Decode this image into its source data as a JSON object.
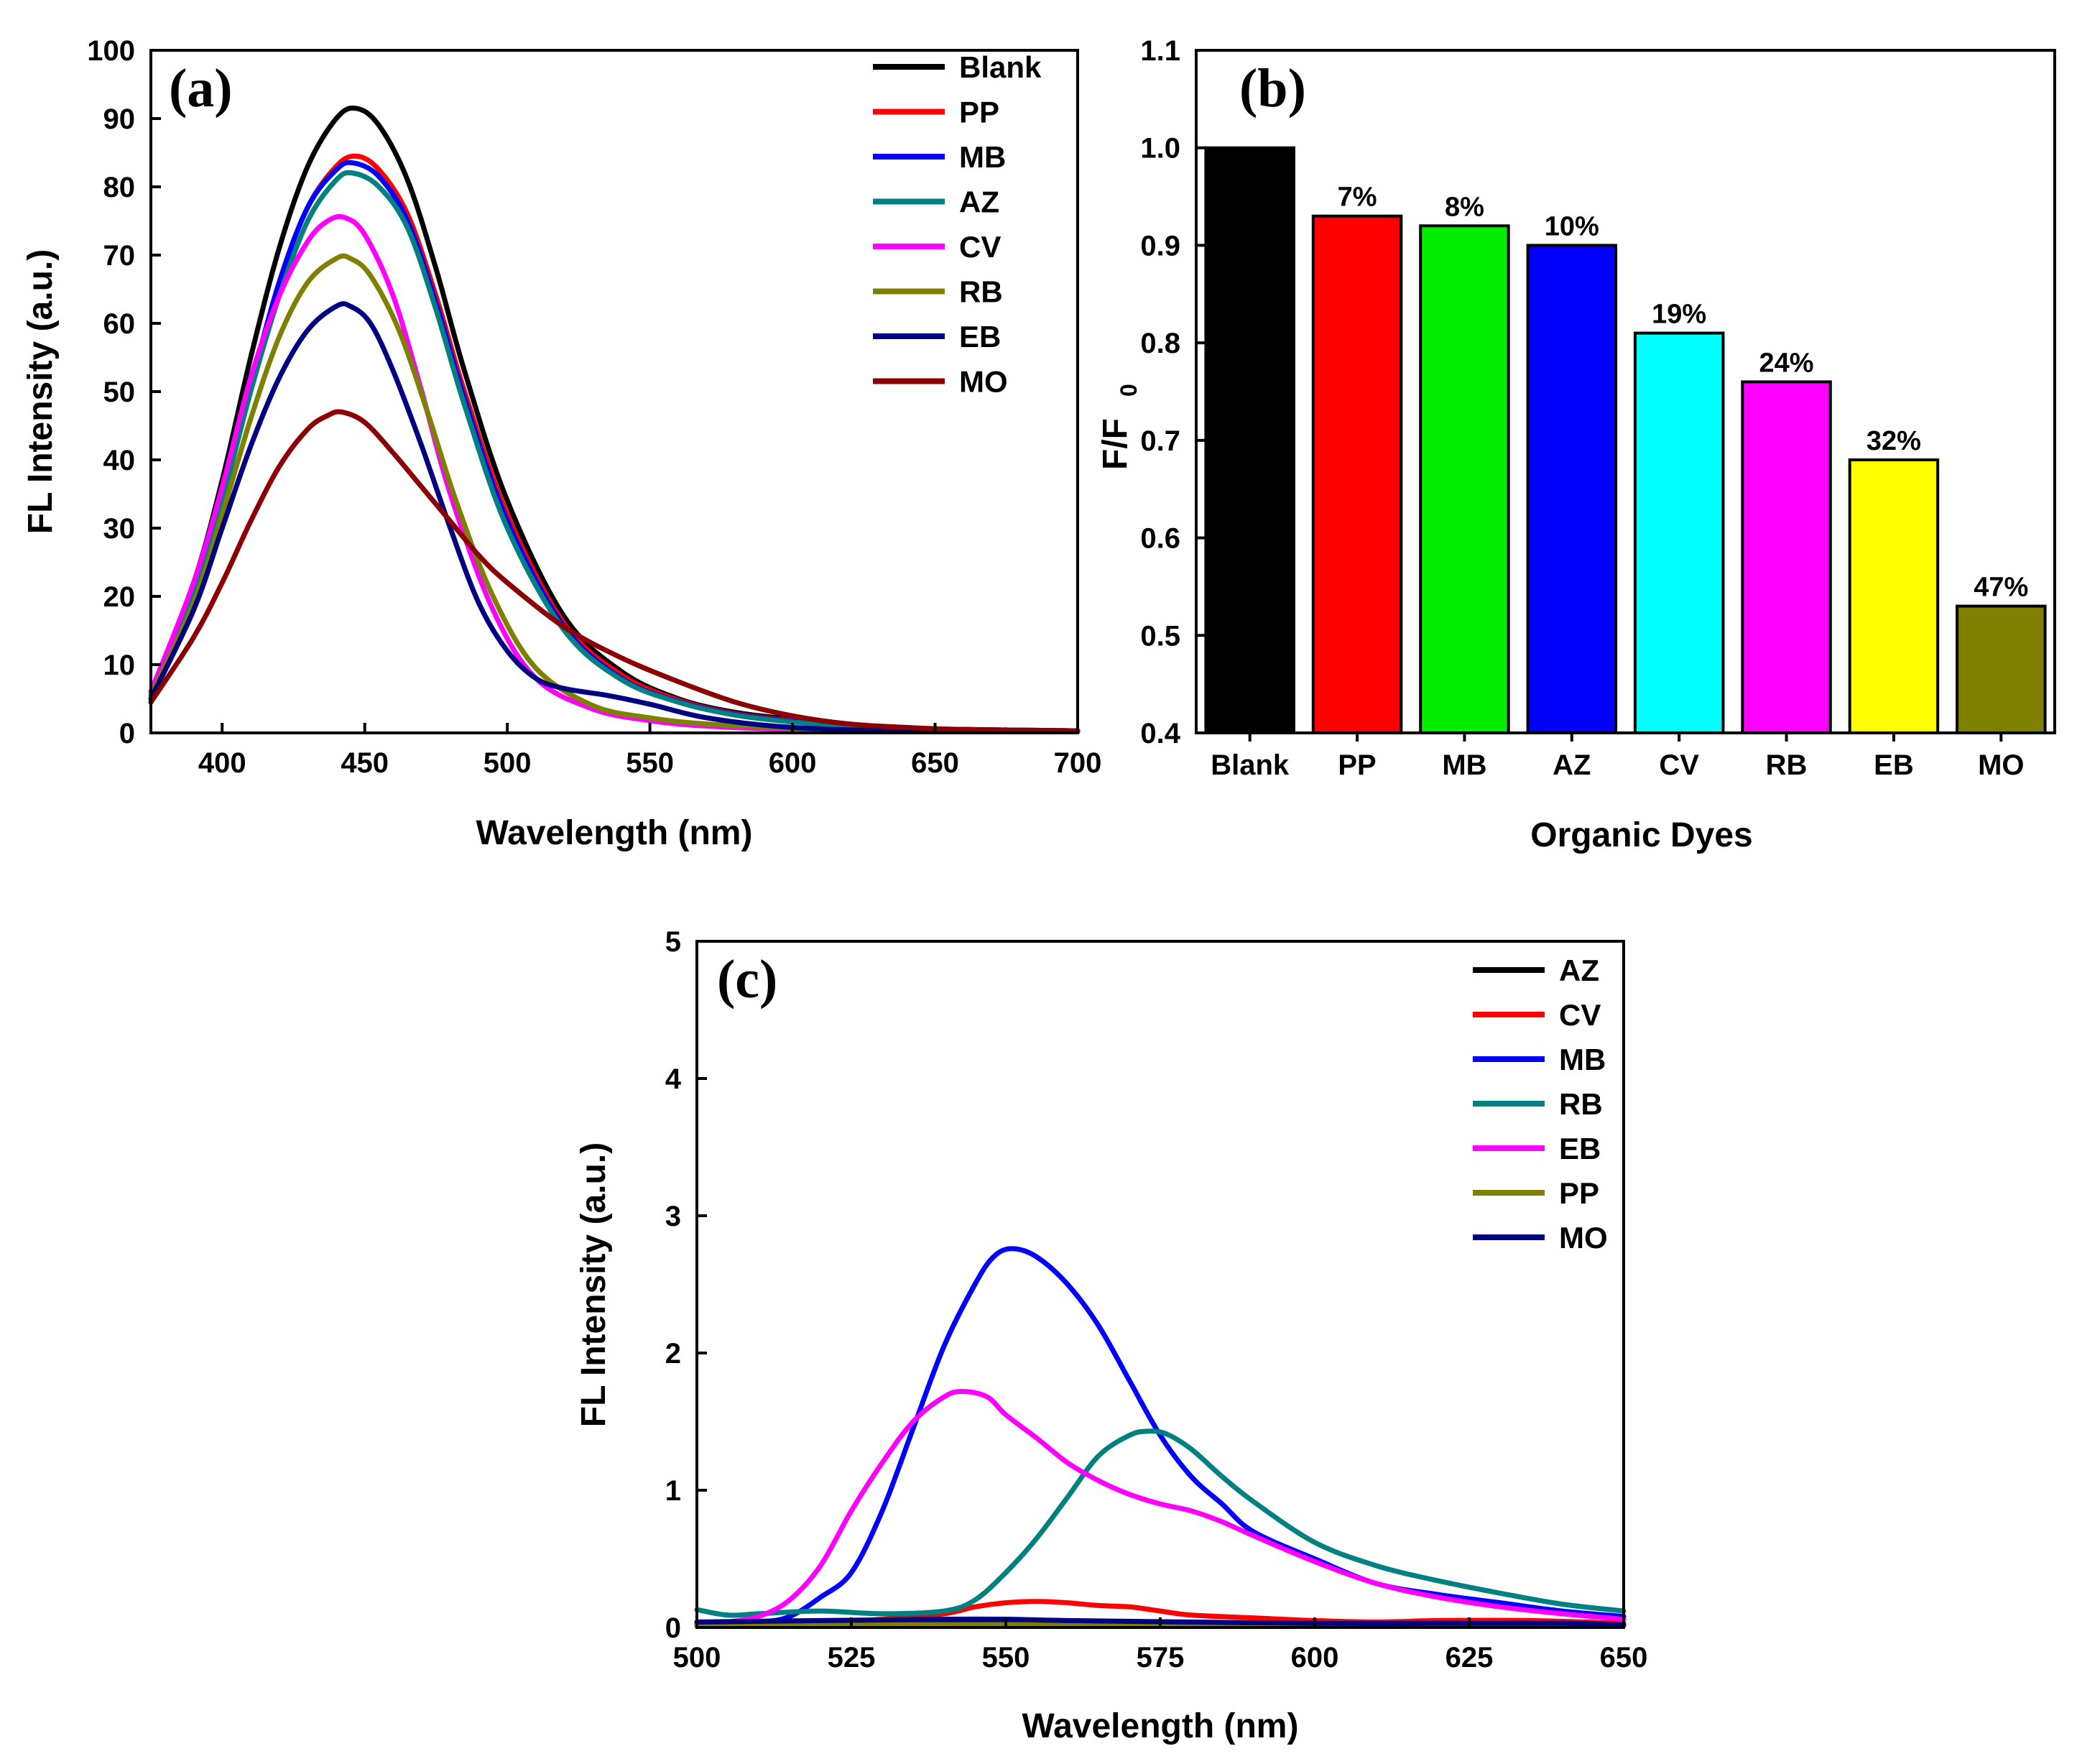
{
  "chart_data": [
    {
      "id": "a",
      "type": "line",
      "panel_label": "(a)",
      "xlabel": "Wavelength (nm)",
      "ylabel": "FL Intensity (a.u.)",
      "xlim": [
        375,
        700
      ],
      "ylim": [
        0,
        100
      ],
      "xticks": [
        400,
        450,
        500,
        550,
        600,
        650,
        700
      ],
      "yticks": [
        0,
        10,
        20,
        30,
        40,
        50,
        60,
        70,
        80,
        90,
        100
      ],
      "legend_position": "top-right",
      "series": [
        {
          "name": "Blank",
          "color": "#000000",
          "x": [
            375,
            390,
            400,
            410,
            420,
            430,
            440,
            447,
            455,
            465,
            475,
            485,
            500,
            520,
            540,
            560,
            580,
            600,
            620,
            640,
            660,
            680,
            700
          ],
          "y": [
            6,
            22,
            37,
            55,
            71,
            83,
            90,
            91.5,
            89,
            81,
            68,
            53,
            34,
            17,
            9,
            5,
            3,
            2,
            1.2,
            0.7,
            0.5,
            0.4,
            0.3
          ]
        },
        {
          "name": "PP",
          "color": "#ff0000",
          "x": [
            375,
            390,
            400,
            410,
            420,
            430,
            440,
            447,
            455,
            465,
            475,
            485,
            500,
            520,
            540,
            560,
            580,
            600,
            620,
            640,
            660,
            680,
            700
          ],
          "y": [
            6,
            21,
            35,
            51,
            66,
            77,
            83,
            84.5,
            82.5,
            76,
            64,
            50,
            32,
            16,
            8.5,
            4.8,
            2.8,
            1.8,
            1.1,
            0.7,
            0.5,
            0.4,
            0.3
          ]
        },
        {
          "name": "MB",
          "color": "#0000ff",
          "x": [
            375,
            390,
            400,
            410,
            420,
            430,
            440,
            446,
            455,
            465,
            475,
            485,
            500,
            520,
            540,
            560,
            580,
            600,
            620,
            640,
            660,
            680,
            700
          ],
          "y": [
            6,
            21,
            35,
            51,
            66,
            77,
            82.5,
            83.5,
            81.5,
            75,
            63,
            49,
            31,
            15.5,
            8,
            4.6,
            2.7,
            1.7,
            1.0,
            0.6,
            0.5,
            0.4,
            0.3
          ]
        },
        {
          "name": "AZ",
          "color": "#008080",
          "x": [
            375,
            390,
            400,
            410,
            420,
            430,
            440,
            446,
            455,
            465,
            475,
            485,
            500,
            520,
            540,
            560,
            580,
            600,
            620,
            640,
            660,
            680,
            700
          ],
          "y": [
            5.5,
            20,
            34,
            50,
            64,
            75,
            81,
            82,
            80,
            74,
            62,
            48,
            30,
            15,
            7.8,
            4.5,
            2.6,
            1.6,
            1.0,
            0.6,
            0.5,
            0.4,
            0.3
          ]
        },
        {
          "name": "CV",
          "color": "#ff00ff",
          "x": [
            375,
            390,
            400,
            410,
            420,
            430,
            437,
            443,
            450,
            460,
            470,
            480,
            495,
            510,
            530,
            550,
            570,
            600,
            640,
            700
          ],
          "y": [
            6,
            22,
            36,
            52,
            64,
            72,
            75,
            75.5,
            73,
            64,
            50,
            35,
            18,
            8,
            3.5,
            1.8,
            1.0,
            0.5,
            0.3,
            0.2
          ]
        },
        {
          "name": "RB",
          "color": "#808000",
          "x": [
            375,
            390,
            400,
            410,
            420,
            430,
            440,
            445,
            452,
            462,
            472,
            482,
            495,
            510,
            530,
            550,
            570,
            600,
            640,
            700
          ],
          "y": [
            5.5,
            19,
            32,
            46,
            58,
            66,
            69.5,
            69.5,
            67,
            59,
            47,
            34,
            20,
            9.5,
            4,
            2.2,
            1.3,
            0.7,
            0.4,
            0.3
          ]
        },
        {
          "name": "EB",
          "color": "#000080",
          "x": [
            375,
            390,
            400,
            410,
            420,
            430,
            440,
            445,
            452,
            460,
            470,
            480,
            490,
            500,
            510,
            520,
            535,
            550,
            570,
            600,
            640,
            700
          ],
          "y": [
            5,
            18,
            30,
            42,
            52,
            59,
            62.5,
            62.5,
            60,
            53,
            42,
            30,
            19,
            12,
            8,
            6.5,
            5.5,
            4.2,
            2.2,
            0.8,
            0.3,
            0.2
          ]
        },
        {
          "name": "MO",
          "color": "#8b0000",
          "x": [
            375,
            390,
            400,
            410,
            420,
            430,
            437,
            442,
            450,
            460,
            470,
            480,
            490,
            500,
            520,
            540,
            560,
            580,
            600,
            620,
            640,
            660,
            700
          ],
          "y": [
            4.5,
            14,
            22,
            31,
            39,
            44.5,
            46.5,
            47,
            45.5,
            41,
            36,
            31,
            26,
            22,
            15.5,
            11,
            7.5,
            4.5,
            2.5,
            1.3,
            0.8,
            0.5,
            0.3
          ]
        }
      ]
    },
    {
      "id": "b",
      "type": "bar",
      "panel_label": "(b)",
      "xlabel": "Organic Dyes",
      "ylabel_main": "F/F",
      "ylabel_sub": "0",
      "ylim": [
        0.4,
        1.1
      ],
      "yticks": [
        "0.4",
        "0.5",
        "0.6",
        "0.7",
        "0.8",
        "0.9",
        "1.0",
        "1.1"
      ],
      "categories": [
        "Blank",
        "PP",
        "MB",
        "AZ",
        "CV",
        "RB",
        "EB",
        "MO"
      ],
      "values": [
        1.0,
        0.93,
        0.92,
        0.9,
        0.81,
        0.76,
        0.68,
        0.53
      ],
      "bar_labels": [
        "",
        "7%",
        "8%",
        "10%",
        "19%",
        "24%",
        "32%",
        "47%"
      ],
      "colors": [
        "#000000",
        "#ff0000",
        "#00ee00",
        "#0000ff",
        "#00ffff",
        "#ff00ff",
        "#ffff00",
        "#808000"
      ]
    },
    {
      "id": "c",
      "type": "line",
      "panel_label": "(c)",
      "xlabel": "Wavelength (nm)",
      "ylabel": "FL Intensity (a.u.)",
      "xlim": [
        500,
        650
      ],
      "ylim": [
        0,
        5
      ],
      "xticks": [
        500,
        525,
        550,
        575,
        600,
        625,
        650
      ],
      "yticks": [
        0,
        1,
        2,
        3,
        4,
        5
      ],
      "legend_position": "top-right",
      "series": [
        {
          "name": "AZ",
          "color": "#000000",
          "x": [
            500,
            520,
            540,
            560,
            580,
            600,
            620,
            650
          ],
          "y": [
            0.02,
            0.03,
            0.04,
            0.03,
            0.02,
            0.02,
            0.02,
            0.02
          ]
        },
        {
          "name": "CV",
          "color": "#ff0000",
          "x": [
            500,
            510,
            520,
            530,
            540,
            545,
            550,
            555,
            560,
            565,
            570,
            575,
            580,
            590,
            600,
            610,
            620,
            635,
            650
          ],
          "y": [
            0.02,
            0.02,
            0.03,
            0.06,
            0.1,
            0.15,
            0.18,
            0.19,
            0.18,
            0.16,
            0.15,
            0.12,
            0.09,
            0.07,
            0.05,
            0.04,
            0.05,
            0.05,
            0.03
          ]
        },
        {
          "name": "MB",
          "color": "#0000ff",
          "x": [
            500,
            510,
            515,
            520,
            525,
            530,
            535,
            540,
            545,
            548,
            551,
            555,
            560,
            565,
            570,
            575,
            580,
            585,
            590,
            600,
            610,
            620,
            630,
            640,
            650
          ],
          "y": [
            0.02,
            0.04,
            0.08,
            0.22,
            0.4,
            0.85,
            1.45,
            2.05,
            2.5,
            2.7,
            2.76,
            2.7,
            2.5,
            2.2,
            1.8,
            1.4,
            1.1,
            0.9,
            0.7,
            0.5,
            0.32,
            0.24,
            0.18,
            0.12,
            0.08
          ]
        },
        {
          "name": "RB",
          "color": "#008080",
          "x": [
            500,
            505,
            510,
            520,
            530,
            540,
            545,
            550,
            555,
            560,
            565,
            570,
            573,
            576,
            580,
            585,
            590,
            600,
            610,
            620,
            630,
            640,
            650
          ],
          "y": [
            0.13,
            0.09,
            0.1,
            0.12,
            0.1,
            0.12,
            0.2,
            0.4,
            0.65,
            0.95,
            1.25,
            1.4,
            1.43,
            1.41,
            1.3,
            1.1,
            0.92,
            0.62,
            0.45,
            0.34,
            0.25,
            0.17,
            0.12
          ]
        },
        {
          "name": "EB",
          "color": "#ff00ff",
          "x": [
            500,
            505,
            510,
            515,
            520,
            525,
            530,
            535,
            540,
            543,
            547,
            550,
            555,
            560,
            565,
            570,
            575,
            580,
            585,
            590,
            600,
            610,
            620,
            630,
            640,
            650
          ],
          "y": [
            0.02,
            0.04,
            0.08,
            0.2,
            0.45,
            0.85,
            1.2,
            1.5,
            1.68,
            1.72,
            1.68,
            1.55,
            1.38,
            1.2,
            1.07,
            0.97,
            0.9,
            0.85,
            0.77,
            0.67,
            0.48,
            0.32,
            0.22,
            0.15,
            0.1,
            0.06
          ]
        },
        {
          "name": "PP",
          "color": "#808000",
          "x": [
            500,
            530,
            560,
            590,
            620,
            650
          ],
          "y": [
            0.01,
            0.02,
            0.02,
            0.01,
            0.01,
            0.01
          ]
        },
        {
          "name": "MO",
          "color": "#000080",
          "x": [
            500,
            520,
            540,
            550,
            560,
            580,
            600,
            620,
            640,
            650
          ],
          "y": [
            0.04,
            0.05,
            0.06,
            0.06,
            0.05,
            0.04,
            0.03,
            0.03,
            0.03,
            0.02
          ]
        }
      ]
    }
  ]
}
